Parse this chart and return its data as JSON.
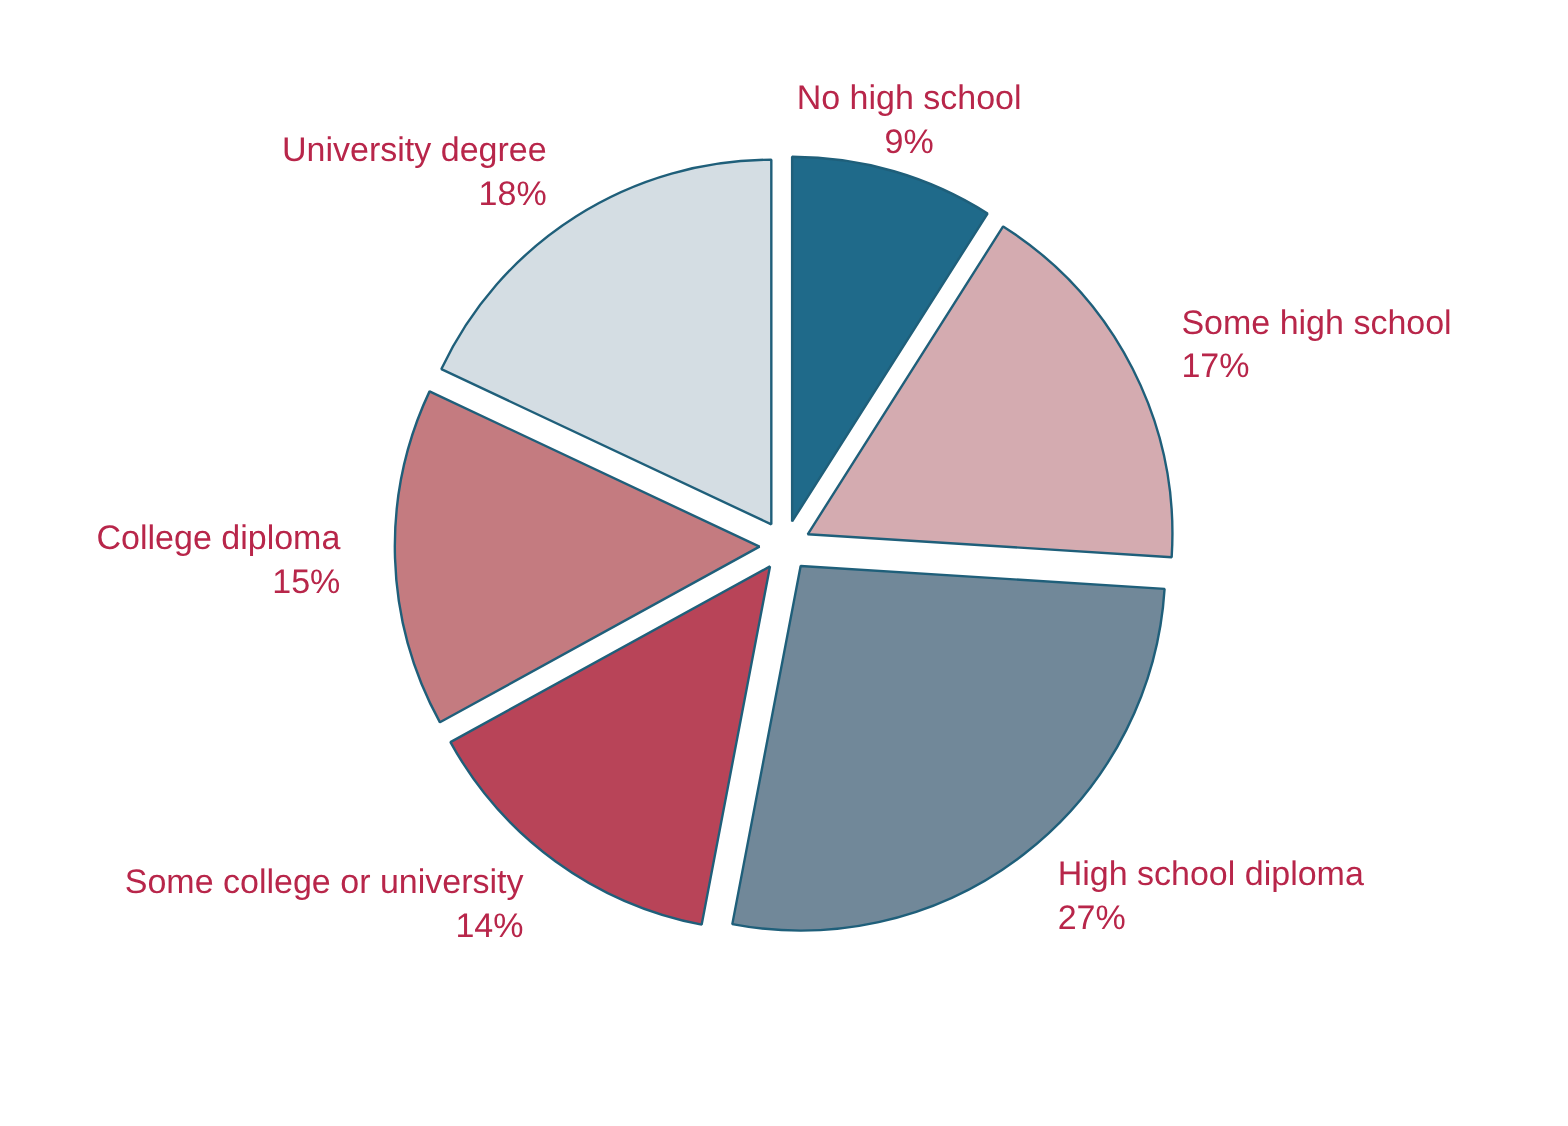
{
  "chart_data": {
    "type": "pie",
    "categories": [
      "No high school",
      "Some high school",
      "High school diploma",
      "Some college or university",
      "College diploma",
      "University degree"
    ],
    "values": [
      9,
      17,
      27,
      14,
      15,
      18
    ],
    "value_labels": [
      "9%",
      "17%",
      "27%",
      "14%",
      "15%",
      "18%"
    ],
    "colors": [
      "#1f6a8a",
      "#d4abb0",
      "#718899",
      "#b84458",
      "#c47b80",
      "#d4dde3"
    ]
  }
}
